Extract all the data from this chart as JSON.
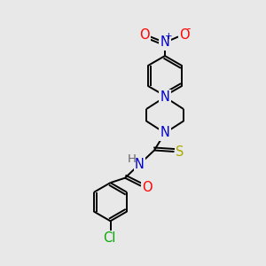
{
  "bg_color": "#e8e8e8",
  "bond_color": "#000000",
  "atom_colors": {
    "N": "#0000cc",
    "O": "#ff0000",
    "S": "#aaaa00",
    "Cl": "#00aa00",
    "H": "#666666",
    "C": "#000000"
  },
  "font_size": 8.5,
  "bond_width": 1.4,
  "figsize": [
    3.0,
    3.0
  ],
  "dpi": 100,
  "xlim": [
    0,
    10
  ],
  "ylim": [
    0,
    10
  ]
}
